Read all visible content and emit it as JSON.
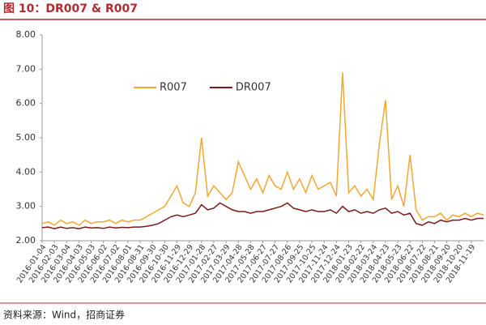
{
  "chart_data": {
    "type": "line",
    "title": "图 10：DR007 & R007",
    "source": "资料来源：Wind，招商证券",
    "categories": [
      "2016-01-04",
      null,
      "2016-02-03",
      null,
      "2016-03-04",
      null,
      "2016-04-03",
      null,
      "2016-05-03",
      null,
      "2016-06-02",
      null,
      "2016-07-02",
      null,
      "2016-08-01",
      null,
      "2016-08-31",
      null,
      "2016-09-30",
      null,
      "2016-10-30",
      null,
      "2016-11-29",
      null,
      "2016-12-29",
      null,
      "2017-01-28",
      null,
      "2017-02-27",
      null,
      "2017-03-29",
      null,
      "2017-04-28",
      null,
      "2017-05-28",
      null,
      "2017-06-27",
      null,
      "2017-07-27",
      null,
      "2017-08-26",
      null,
      "2017-09-25",
      null,
      "2017-10-25",
      null,
      "2017-11-24",
      null,
      "2017-12-24",
      null,
      "2018-01-23",
      null,
      "2018-02-22",
      null,
      "2018-03-24",
      null,
      "2018-04-23",
      null,
      "2018-05-23",
      null,
      "2018-06-22",
      null,
      "2018-07-22",
      null,
      "2018-08-21",
      null,
      "2018-09-20",
      null,
      "2018-10-20",
      null,
      "2018-11-19",
      null,
      null
    ],
    "series": [
      {
        "name": "R007",
        "color": "#f0a830",
        "values": [
          2.5,
          2.55,
          2.45,
          2.6,
          2.5,
          2.55,
          2.45,
          2.6,
          2.5,
          2.55,
          2.55,
          2.6,
          2.5,
          2.6,
          2.55,
          2.6,
          2.6,
          2.7,
          2.8,
          2.9,
          3.0,
          3.3,
          3.6,
          3.1,
          3.0,
          3.4,
          5.0,
          3.3,
          3.6,
          3.4,
          3.2,
          3.4,
          4.3,
          3.9,
          3.5,
          3.8,
          3.4,
          3.9,
          3.6,
          3.5,
          4.0,
          3.5,
          3.8,
          3.4,
          3.9,
          3.5,
          3.6,
          3.7,
          3.3,
          6.9,
          3.4,
          3.6,
          3.3,
          3.5,
          3.2,
          4.8,
          6.1,
          3.2,
          3.6,
          3.0,
          4.5,
          2.9,
          2.6,
          2.7,
          2.7,
          2.8,
          2.6,
          2.75,
          2.7,
          2.8,
          2.7,
          2.8,
          2.75
        ]
      },
      {
        "name": "DR007",
        "color": "#7b1a1a",
        "values": [
          2.38,
          2.4,
          2.35,
          2.4,
          2.36,
          2.38,
          2.35,
          2.4,
          2.37,
          2.38,
          2.36,
          2.4,
          2.37,
          2.39,
          2.38,
          2.4,
          2.4,
          2.42,
          2.45,
          2.5,
          2.6,
          2.7,
          2.75,
          2.7,
          2.75,
          2.8,
          3.05,
          2.9,
          2.95,
          3.1,
          3.0,
          2.9,
          2.85,
          2.85,
          2.8,
          2.85,
          2.85,
          2.9,
          2.95,
          3.0,
          3.1,
          2.95,
          2.9,
          2.85,
          2.9,
          2.85,
          2.85,
          2.9,
          2.8,
          3.0,
          2.85,
          2.9,
          2.8,
          2.85,
          2.8,
          2.9,
          2.95,
          2.8,
          2.85,
          2.75,
          2.8,
          2.5,
          2.45,
          2.55,
          2.5,
          2.6,
          2.55,
          2.6,
          2.6,
          2.65,
          2.6,
          2.65,
          2.65
        ]
      }
    ],
    "ylim": [
      2,
      8
    ],
    "yticks": [
      {
        "value": 2,
        "label": "2.00"
      },
      {
        "value": 3,
        "label": "3.00"
      },
      {
        "value": 4,
        "label": "4.00"
      },
      {
        "value": 5,
        "label": "5.00"
      },
      {
        "value": 6,
        "label": "6.00"
      },
      {
        "value": 7,
        "label": "7.00"
      },
      {
        "value": 8,
        "label": "8.00"
      }
    ],
    "grid": false,
    "legend": "top-left"
  }
}
